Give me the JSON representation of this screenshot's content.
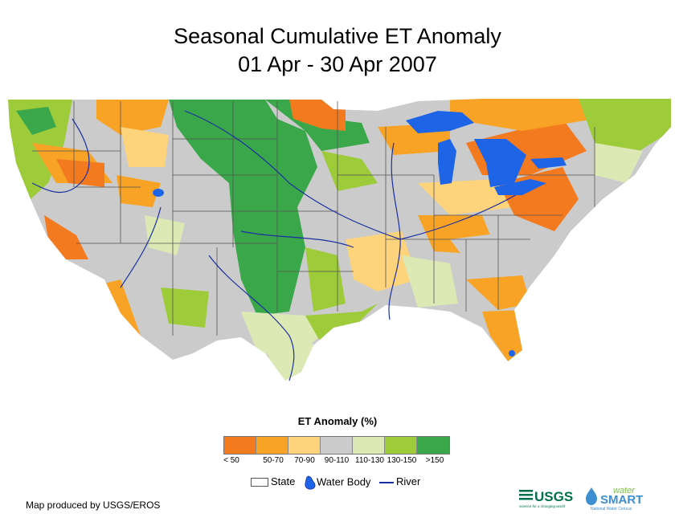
{
  "title": {
    "line1": "Seasonal Cumulative ET Anomaly",
    "line2": "01 Apr - 30 Apr 2007"
  },
  "legend": {
    "title": "ET Anomaly (%)",
    "classes": [
      {
        "label": "< 50",
        "color": "#f47a20"
      },
      {
        "label": "50-70",
        "color": "#f8a325"
      },
      {
        "label": "70-90",
        "color": "#fdd37b"
      },
      {
        "label": "90-110",
        "color": "#cbcbcb"
      },
      {
        "label": "110-130",
        "color": "#dde9b5"
      },
      {
        "label": "130-150",
        "color": "#9ecb3a"
      },
      {
        "label": ">150",
        "color": "#3aa84a"
      }
    ]
  },
  "symbols": {
    "state": "State",
    "water_body": "Water Body",
    "river": "River"
  },
  "colors": {
    "water": "#1e64e6",
    "river": "#1a2fa0",
    "state_line": "#555555"
  },
  "credit": "Map produced by USGS/EROS",
  "logos": {
    "usgs": "USGS",
    "usgs_tagline": "science for a changing world",
    "ws_top": "water",
    "ws_main": "SMART",
    "ws_sub": "National Water Census"
  }
}
